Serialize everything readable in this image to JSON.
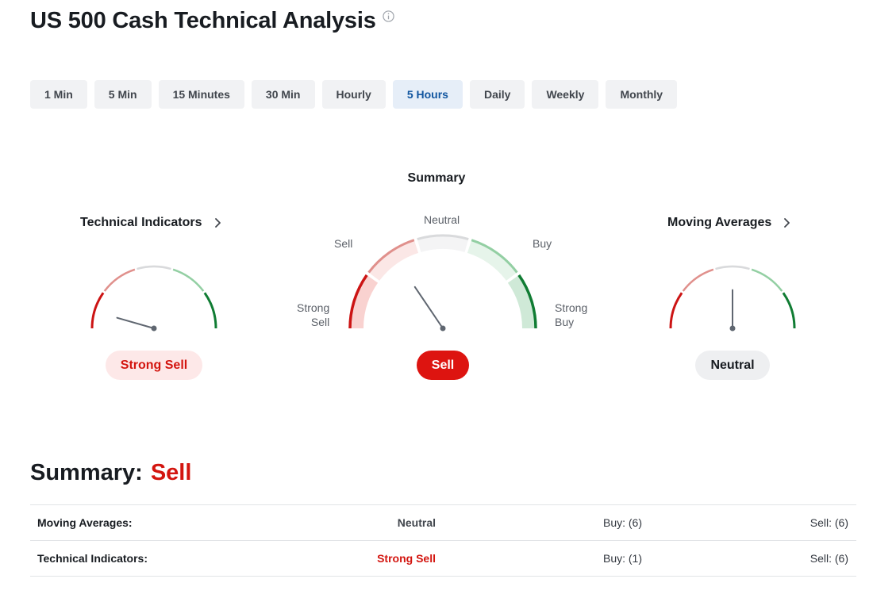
{
  "header": {
    "title": "US 500 Cash Technical Analysis",
    "info_icon": "info-icon"
  },
  "tabs": [
    {
      "label": "1 Min",
      "active": false
    },
    {
      "label": "5 Min",
      "active": false
    },
    {
      "label": "15 Minutes",
      "active": false
    },
    {
      "label": "30 Min",
      "active": false
    },
    {
      "label": "Hourly",
      "active": false
    },
    {
      "label": "5 Hours",
      "active": true
    },
    {
      "label": "Daily",
      "active": false
    },
    {
      "label": "Weekly",
      "active": false
    },
    {
      "label": "Monthly",
      "active": false
    }
  ],
  "gauges": {
    "technical_indicators": {
      "title": "Technical Indicators",
      "rating": "Strong Sell"
    },
    "summary": {
      "title": "Summary",
      "rating": "Sell",
      "labels": {
        "strong_sell_1": "Strong",
        "strong_sell_2": "Sell",
        "sell": "Sell",
        "neutral": "Neutral",
        "buy": "Buy",
        "strong_buy_1": "Strong",
        "strong_buy_2": "Buy"
      }
    },
    "moving_averages": {
      "title": "Moving Averages",
      "rating": "Neutral"
    }
  },
  "colors": {
    "strong_sell": "#cc1414",
    "sell": "#e0908c",
    "neutral": "#d9dadc",
    "buy": "#93cfa3",
    "strong_buy": "#107c33",
    "needle": "#5f6670"
  },
  "summary_section": {
    "label": "Summary:",
    "value": "Sell",
    "rows": [
      {
        "name": "Moving Averages:",
        "rating": "Neutral",
        "buy": "Buy: (6)",
        "sell": "Sell: (6)"
      },
      {
        "name": "Technical Indicators:",
        "rating": "Strong Sell",
        "buy": "Buy: (1)",
        "sell": "Sell: (6)"
      }
    ]
  }
}
